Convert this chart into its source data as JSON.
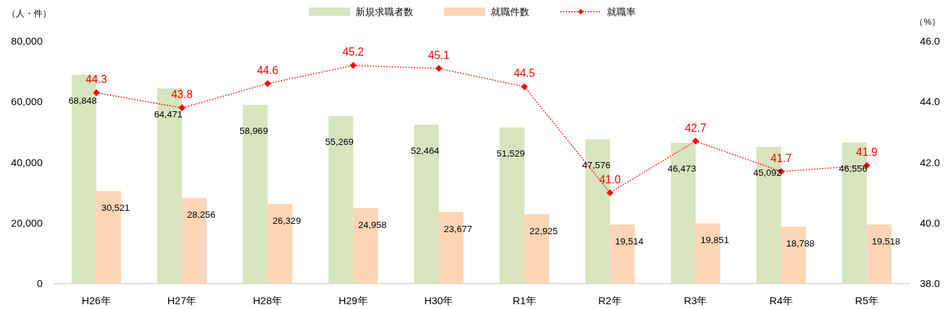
{
  "chart_data": {
    "type": "bar",
    "categories": [
      "H26年",
      "H27年",
      "H28年",
      "H29年",
      "H30年",
      "R1年",
      "R2年",
      "R3年",
      "R4年",
      "R5年"
    ],
    "ylabel": "（人・件）",
    "y2label": "（%）",
    "ylim": [
      0,
      80000
    ],
    "yticks": [
      {
        "value": 0,
        "label": "0"
      },
      {
        "value": 20000,
        "label": "20,000"
      },
      {
        "value": 40000,
        "label": "40,000"
      },
      {
        "value": 60000,
        "label": "60,000"
      },
      {
        "value": 80000,
        "label": "80,000"
      }
    ],
    "y2lim": [
      38,
      46
    ],
    "y2ticks": [
      {
        "value": 38,
        "label": "38.0"
      },
      {
        "value": 40,
        "label": "40.0"
      },
      {
        "value": 42,
        "label": "42.0"
      },
      {
        "value": 44,
        "label": "44.0"
      },
      {
        "value": 46,
        "label": "46.0"
      }
    ],
    "legend": "top",
    "grid": false,
    "series": [
      {
        "name": "新規求職者数",
        "color": "#d7e4bd",
        "values": [
          68848,
          64471,
          58969,
          55269,
          52464,
          51529,
          47576,
          46473,
          45092,
          46556
        ],
        "value_labels": [
          "68,848",
          "64,471",
          "58,969",
          "55,269",
          "52,464",
          "51,529",
          "47,576",
          "46,473",
          "45,092",
          "46,556"
        ]
      },
      {
        "name": "就職件数",
        "color": "#fbd5b5",
        "values": [
          30521,
          28256,
          26329,
          24958,
          23677,
          22925,
          19514,
          19851,
          18788,
          19518
        ],
        "value_labels": [
          "30,521",
          "28,256",
          "26,329",
          "24,958",
          "23,677",
          "22,925",
          "19,514",
          "19,851",
          "18,788",
          "19,518"
        ]
      },
      {
        "name": "就職率",
        "type": "line",
        "axis": "y2",
        "color": "#ff0000",
        "marker": "diamond",
        "line_style": "dotted",
        "values": [
          44.3,
          43.8,
          44.6,
          45.2,
          45.1,
          44.5,
          41.0,
          42.7,
          41.7,
          41.9
        ],
        "value_labels": [
          "44.3",
          "43.8",
          "44.6",
          "45.2",
          "45.1",
          "44.5",
          "41.0",
          "42.7",
          "41.7",
          "41.9"
        ]
      }
    ]
  }
}
